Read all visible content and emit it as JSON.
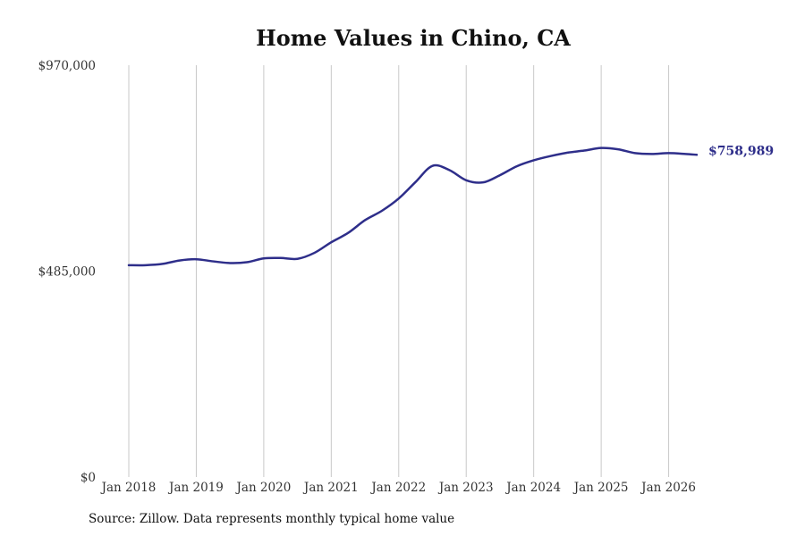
{
  "chart_data": {
    "type": "line",
    "title": "Home Values in Chino, CA",
    "xlabel": "",
    "ylabel": "",
    "source": "Source: Zillow. Data represents monthly typical home value",
    "ylim": [
      0,
      970000
    ],
    "yticks": [
      {
        "value": 0,
        "label": "$0"
      },
      {
        "value": 485000,
        "label": "$485,000"
      },
      {
        "value": 970000,
        "label": "$970,000"
      }
    ],
    "xticks": [
      {
        "value": "2018-01",
        "label": "Jan 2018"
      },
      {
        "value": "2019-01",
        "label": "Jan 2019"
      },
      {
        "value": "2020-01",
        "label": "Jan 2020"
      },
      {
        "value": "2021-01",
        "label": "Jan 2021"
      },
      {
        "value": "2022-01",
        "label": "Jan 2022"
      },
      {
        "value": "2023-01",
        "label": "Jan 2023"
      },
      {
        "value": "2024-01",
        "label": "Jan 2024"
      },
      {
        "value": "2025-01",
        "label": "Jan 2025"
      },
      {
        "value": "2026-01",
        "label": "Jan 2026"
      }
    ],
    "xlim": [
      "2018-01",
      "2026-06"
    ],
    "grid": "vertical",
    "line_color": "#2e2e8a",
    "grid_color": "#c8c8c8",
    "end_label": "$758,989",
    "series": [
      {
        "name": "",
        "points": [
          [
            "2018-01",
            499000
          ],
          [
            "2018-04",
            499000
          ],
          [
            "2018-07",
            502000
          ],
          [
            "2018-10",
            510000
          ],
          [
            "2019-01",
            513000
          ],
          [
            "2019-04",
            508000
          ],
          [
            "2019-07",
            504000
          ],
          [
            "2019-10",
            506000
          ],
          [
            "2020-01",
            515000
          ],
          [
            "2020-04",
            516000
          ],
          [
            "2020-07",
            514000
          ],
          [
            "2020-10",
            528000
          ],
          [
            "2021-01",
            553000
          ],
          [
            "2021-04",
            575000
          ],
          [
            "2021-07",
            605000
          ],
          [
            "2021-10",
            627000
          ],
          [
            "2022-01",
            656000
          ],
          [
            "2022-04",
            695000
          ],
          [
            "2022-07",
            733000
          ],
          [
            "2022-10",
            723000
          ],
          [
            "2023-01",
            699000
          ],
          [
            "2023-04",
            694000
          ],
          [
            "2023-07",
            711000
          ],
          [
            "2023-10",
            732000
          ],
          [
            "2024-01",
            746000
          ],
          [
            "2024-04",
            756000
          ],
          [
            "2024-07",
            764000
          ],
          [
            "2024-10",
            769000
          ],
          [
            "2025-01",
            775000
          ],
          [
            "2025-04",
            772000
          ],
          [
            "2025-07",
            763000
          ],
          [
            "2025-10",
            761000
          ],
          [
            "2026-01",
            763000
          ],
          [
            "2026-04",
            761000
          ],
          [
            "2026-06",
            758989
          ]
        ]
      }
    ]
  }
}
